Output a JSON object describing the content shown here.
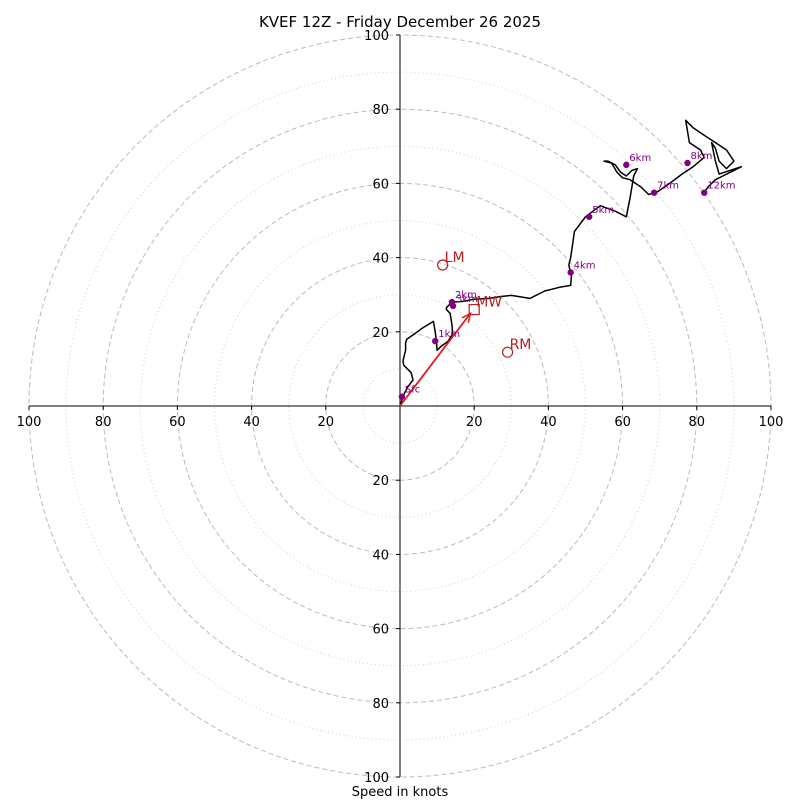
{
  "chart_data": {
    "type": "hodograph",
    "title": "KVEF 12Z - Friday December 26 2025",
    "xlabel": "Speed in knots",
    "range": [
      -100,
      100
    ],
    "ring_major": [
      20,
      40,
      60,
      80,
      100
    ],
    "ring_minor": [
      10,
      30,
      50,
      70,
      90
    ],
    "tick_values": [
      20,
      40,
      60,
      80,
      100
    ],
    "colors": {
      "trace": "#000000",
      "height_marker": "#800080",
      "motion": "#b22222",
      "shear_vector": "#e41a1c",
      "grid": "#bbbbbb"
    },
    "trace": [
      [
        0,
        0
      ],
      [
        1,
        3
      ],
      [
        2,
        5
      ],
      [
        3.5,
        7
      ],
      [
        3,
        9
      ],
      [
        1,
        11
      ],
      [
        0.8,
        12
      ],
      [
        1,
        13
      ],
      [
        1.5,
        15
      ],
      [
        1.5,
        17
      ],
      [
        1.8,
        18
      ],
      [
        4,
        19.5
      ],
      [
        6,
        21
      ],
      [
        8,
        22.2
      ],
      [
        9,
        22.8
      ],
      [
        9.5,
        20
      ],
      [
        9.8,
        17.5
      ],
      [
        10,
        15
      ],
      [
        11,
        16
      ],
      [
        13,
        17.5
      ],
      [
        14.2,
        19.5
      ],
      [
        14,
        22
      ],
      [
        13.5,
        25
      ],
      [
        12.5,
        26
      ],
      [
        12.5,
        26.5
      ],
      [
        14,
        28
      ],
      [
        17,
        28.2
      ],
      [
        20,
        28.8
      ],
      [
        24,
        29
      ],
      [
        27,
        29.5
      ],
      [
        30,
        29.8
      ],
      [
        35,
        29
      ],
      [
        39,
        31
      ],
      [
        43,
        32
      ],
      [
        46,
        32.5
      ],
      [
        46.2,
        35
      ],
      [
        45.5,
        38
      ],
      [
        46,
        40
      ],
      [
        47,
        47
      ],
      [
        50,
        51
      ],
      [
        54,
        54
      ],
      [
        58,
        52.5
      ],
      [
        61,
        51
      ],
      [
        62,
        56
      ],
      [
        63,
        62
      ],
      [
        64,
        64
      ],
      [
        62.5,
        63.5
      ],
      [
        61,
        62
      ],
      [
        59.5,
        63
      ],
      [
        58,
        65
      ],
      [
        56,
        66
      ],
      [
        55,
        66
      ],
      [
        57,
        65.5
      ],
      [
        58.5,
        63
      ],
      [
        60,
        61.5
      ],
      [
        62,
        61
      ],
      [
        65,
        59
      ],
      [
        67,
        57
      ],
      [
        69,
        57.5
      ],
      [
        72,
        59.5
      ],
      [
        76,
        62.5
      ],
      [
        79,
        64.5
      ],
      [
        82,
        67
      ],
      [
        81,
        69
      ],
      [
        78,
        71
      ],
      [
        77,
        77
      ],
      [
        79,
        75
      ],
      [
        82,
        73
      ],
      [
        85,
        71
      ],
      [
        88,
        69
      ],
      [
        90,
        66
      ],
      [
        88,
        64
      ],
      [
        86,
        66
      ],
      [
        85,
        69.5
      ],
      [
        84,
        71
      ],
      [
        85,
        66
      ],
      [
        86,
        62.5
      ],
      [
        92,
        64.5
      ],
      [
        90,
        63.5
      ],
      [
        87,
        62
      ],
      [
        85,
        61
      ],
      [
        83,
        59
      ],
      [
        82,
        57.5
      ]
    ],
    "height_markers": [
      {
        "label": "Sfc",
        "u": 0.5,
        "v": 2.5
      },
      {
        "label": "1km",
        "u": 9.5,
        "v": 17.5
      },
      {
        "label": "2km",
        "u": 14,
        "v": 28
      },
      {
        "label": "3km",
        "u": 14.3,
        "v": 27
      },
      {
        "label": "4km",
        "u": 46,
        "v": 36
      },
      {
        "label": "5km",
        "u": 51,
        "v": 51
      },
      {
        "label": "6km",
        "u": 61,
        "v": 65
      },
      {
        "label": "7km",
        "u": 68.5,
        "v": 57.5
      },
      {
        "label": "8km",
        "u": 77.5,
        "v": 65.5
      },
      {
        "label": "12km",
        "u": 82,
        "v": 57.5
      }
    ],
    "storm_motion": [
      {
        "label": "LM",
        "u": 11.5,
        "v": 38,
        "marker": "circle"
      },
      {
        "label": "RM",
        "u": 29,
        "v": 14.5,
        "marker": "circle"
      },
      {
        "label": "MW",
        "u": 20,
        "v": 26,
        "marker": "square"
      }
    ],
    "shear_vector": {
      "from": [
        0,
        0
      ],
      "to": [
        19,
        25
      ]
    }
  }
}
